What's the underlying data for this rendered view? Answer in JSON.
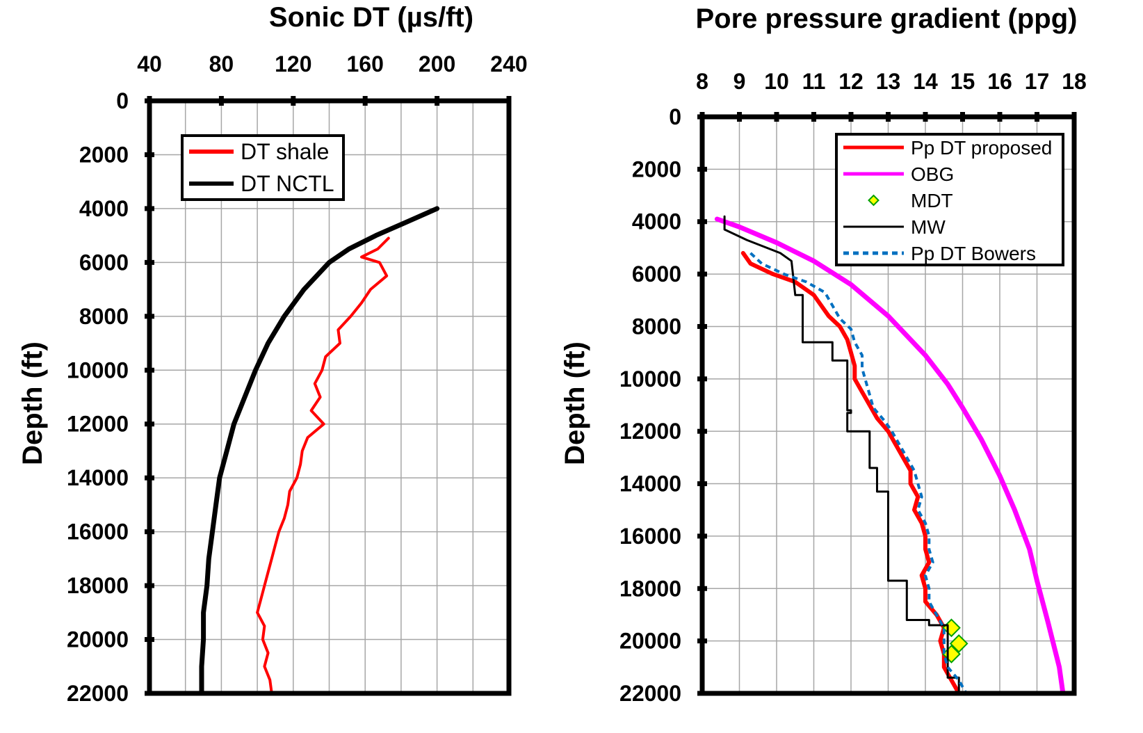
{
  "chart_data": [
    {
      "type": "line",
      "title": "Sonic DT (µs/ft)",
      "xlabel": "Sonic DT (µs/ft)",
      "ylabel": "Depth (ft)",
      "xlim": [
        40,
        240
      ],
      "ylim": [
        0,
        22000
      ],
      "y_reversed": true,
      "x_axis_position": "top",
      "x_ticks": [
        "40",
        "80",
        "120",
        "160",
        "200",
        "240"
      ],
      "y_ticks": [
        "0",
        "2000",
        "4000",
        "6000",
        "8000",
        "10000",
        "12000",
        "14000",
        "16000",
        "18000",
        "20000",
        "22000"
      ],
      "grid": true,
      "legend": "top-left",
      "series": [
        {
          "name": "DT shale",
          "color": "#ff0000",
          "style": "solid",
          "points": [
            [
              173,
              5100
            ],
            [
              167,
              5500
            ],
            [
              158,
              5800
            ],
            [
              168,
              6000
            ],
            [
              172,
              6500
            ],
            [
              163,
              7000
            ],
            [
              158,
              7500
            ],
            [
              152,
              8000
            ],
            [
              145,
              8500
            ],
            [
              146,
              9000
            ],
            [
              138,
              9500
            ],
            [
              136,
              10000
            ],
            [
              132,
              10500
            ],
            [
              135,
              11000
            ],
            [
              130,
              11500
            ],
            [
              137,
              12000
            ],
            [
              128,
              12500
            ],
            [
              125,
              13000
            ],
            [
              124,
              13500
            ],
            [
              122,
              14000
            ],
            [
              118,
              14500
            ],
            [
              117,
              15000
            ],
            [
              115,
              15500
            ],
            [
              112,
              16000
            ],
            [
              110,
              16500
            ],
            [
              108,
              17000
            ],
            [
              106,
              17500
            ],
            [
              104,
              18000
            ],
            [
              102,
              18500
            ],
            [
              100,
              19000
            ],
            [
              104,
              19500
            ],
            [
              103,
              20000
            ],
            [
              106,
              20500
            ],
            [
              104,
              21000
            ],
            [
              107,
              21500
            ],
            [
              108,
              22000
            ]
          ]
        },
        {
          "name": "DT NCTL",
          "color": "#000000",
          "style": "solid",
          "points": [
            [
              200,
              4000
            ],
            [
              183,
              4500
            ],
            [
              166,
              5000
            ],
            [
              151,
              5500
            ],
            [
              140,
              6000
            ],
            [
              126,
              7000
            ],
            [
              115,
              8000
            ],
            [
              106,
              9000
            ],
            [
              99,
              10000
            ],
            [
              93,
              11000
            ],
            [
              87,
              12000
            ],
            [
              83,
              13000
            ],
            [
              79,
              14000
            ],
            [
              77,
              15000
            ],
            [
              75,
              16000
            ],
            [
              73,
              17000
            ],
            [
              72,
              18000
            ],
            [
              70,
              19000
            ],
            [
              70,
              20000
            ],
            [
              69,
              21000
            ],
            [
              69,
              22000
            ]
          ]
        }
      ]
    },
    {
      "type": "line",
      "title": "Pore pressure gradient (ppg)",
      "xlabel": "Pore pressure gradient (ppg)",
      "ylabel": "Depth (ft)",
      "xlim": [
        8,
        18
      ],
      "ylim": [
        0,
        22000
      ],
      "y_reversed": true,
      "x_axis_position": "top",
      "x_ticks": [
        "8",
        "9",
        "10",
        "11",
        "12",
        "13",
        "14",
        "15",
        "16",
        "17",
        "18"
      ],
      "y_ticks": [
        "0",
        "2000",
        "4000",
        "6000",
        "8000",
        "10000",
        "12000",
        "14000",
        "16000",
        "18000",
        "20000",
        "22000"
      ],
      "grid": true,
      "legend": "top-right",
      "series": [
        {
          "name": "Pp DT proposed",
          "color": "#ff0000",
          "style": "solid",
          "points": [
            [
              9.1,
              5200
            ],
            [
              9.3,
              5600
            ],
            [
              9.9,
              6000
            ],
            [
              10.5,
              6300
            ],
            [
              11.0,
              6800
            ],
            [
              11.2,
              7200
            ],
            [
              11.4,
              7600
            ],
            [
              11.7,
              8000
            ],
            [
              11.9,
              8500
            ],
            [
              12.0,
              9000
            ],
            [
              12.1,
              9500
            ],
            [
              12.1,
              10000
            ],
            [
              12.3,
              10500
            ],
            [
              12.5,
              11000
            ],
            [
              12.7,
              11500
            ],
            [
              13.0,
              12000
            ],
            [
              13.2,
              12500
            ],
            [
              13.4,
              13000
            ],
            [
              13.6,
              13500
            ],
            [
              13.6,
              14000
            ],
            [
              13.8,
              14500
            ],
            [
              13.7,
              15000
            ],
            [
              13.9,
              15500
            ],
            [
              14.0,
              16000
            ],
            [
              14.0,
              16500
            ],
            [
              14.1,
              17000
            ],
            [
              13.9,
              17500
            ],
            [
              14.0,
              18000
            ],
            [
              14.0,
              18500
            ],
            [
              14.3,
              19000
            ],
            [
              14.5,
              19500
            ],
            [
              14.4,
              20000
            ],
            [
              14.5,
              20500
            ],
            [
              14.5,
              21000
            ],
            [
              14.7,
              21500
            ],
            [
              14.9,
              22000
            ]
          ]
        },
        {
          "name": "OBG",
          "color": "#ff00ff",
          "style": "solid",
          "points": [
            [
              8.4,
              3900
            ],
            [
              9.0,
              4200
            ],
            [
              10.0,
              4800
            ],
            [
              11.0,
              5500
            ],
            [
              12.0,
              6400
            ],
            [
              13.0,
              7600
            ],
            [
              14.0,
              9100
            ],
            [
              14.6,
              10200
            ],
            [
              15.0,
              11100
            ],
            [
              15.5,
              12300
            ],
            [
              16.0,
              13700
            ],
            [
              16.4,
              15000
            ],
            [
              16.8,
              16500
            ],
            [
              17.0,
              17700
            ],
            [
              17.3,
              19300
            ],
            [
              17.6,
              21000
            ],
            [
              17.7,
              22000
            ]
          ]
        },
        {
          "name": "MDT",
          "color": "#ffff00",
          "edge_color": "#00a000",
          "style": "marker",
          "points": [
            [
              14.7,
              19500
            ],
            [
              14.9,
              20100
            ],
            [
              14.7,
              20500
            ]
          ]
        },
        {
          "name": "MW",
          "color": "#000000",
          "style": "solid",
          "points": [
            [
              8.6,
              3800
            ],
            [
              8.6,
              4300
            ],
            [
              9.2,
              4700
            ],
            [
              10.1,
              5200
            ],
            [
              10.4,
              5500
            ],
            [
              10.5,
              6800
            ],
            [
              10.7,
              6800
            ],
            [
              10.7,
              8600
            ],
            [
              11.5,
              8600
            ],
            [
              11.5,
              9300
            ],
            [
              11.9,
              9300
            ],
            [
              11.9,
              11200
            ],
            [
              12.0,
              11200
            ],
            [
              12.0,
              11300
            ],
            [
              11.9,
              11300
            ],
            [
              11.9,
              12000
            ],
            [
              12.5,
              12000
            ],
            [
              12.5,
              13400
            ],
            [
              12.7,
              13400
            ],
            [
              12.7,
              14300
            ],
            [
              13.0,
              14300
            ],
            [
              13.0,
              17700
            ],
            [
              13.5,
              17700
            ],
            [
              13.5,
              19200
            ],
            [
              14.1,
              19200
            ],
            [
              14.1,
              19400
            ],
            [
              14.6,
              19400
            ],
            [
              14.6,
              21400
            ],
            [
              14.9,
              21400
            ],
            [
              14.9,
              22000
            ]
          ]
        },
        {
          "name": "Pp DT Bowers",
          "color": "#0070c0",
          "style": "dashed",
          "points": [
            [
              9.3,
              5200
            ],
            [
              9.6,
              5600
            ],
            [
              10.2,
              6000
            ],
            [
              10.8,
              6300
            ],
            [
              11.3,
              6700
            ],
            [
              11.5,
              7200
            ],
            [
              11.7,
              7700
            ],
            [
              12.0,
              8100
            ],
            [
              12.1,
              8600
            ],
            [
              12.3,
              9100
            ],
            [
              12.3,
              9600
            ],
            [
              12.4,
              10100
            ],
            [
              12.5,
              10600
            ],
            [
              12.6,
              11100
            ],
            [
              12.9,
              11600
            ],
            [
              13.1,
              12000
            ],
            [
              13.3,
              12500
            ],
            [
              13.5,
              13000
            ],
            [
              13.7,
              13500
            ],
            [
              13.8,
              14000
            ],
            [
              13.9,
              14500
            ],
            [
              13.8,
              15000
            ],
            [
              14.0,
              15500
            ],
            [
              14.1,
              16000
            ],
            [
              14.1,
              16500
            ],
            [
              14.2,
              17000
            ],
            [
              14.0,
              17500
            ],
            [
              14.1,
              18000
            ],
            [
              14.1,
              18500
            ],
            [
              14.3,
              19000
            ],
            [
              14.5,
              19500
            ],
            [
              14.5,
              20000
            ],
            [
              14.5,
              20500
            ],
            [
              14.6,
              21000
            ],
            [
              14.9,
              21500
            ],
            [
              15.1,
              22000
            ]
          ]
        }
      ]
    }
  ]
}
